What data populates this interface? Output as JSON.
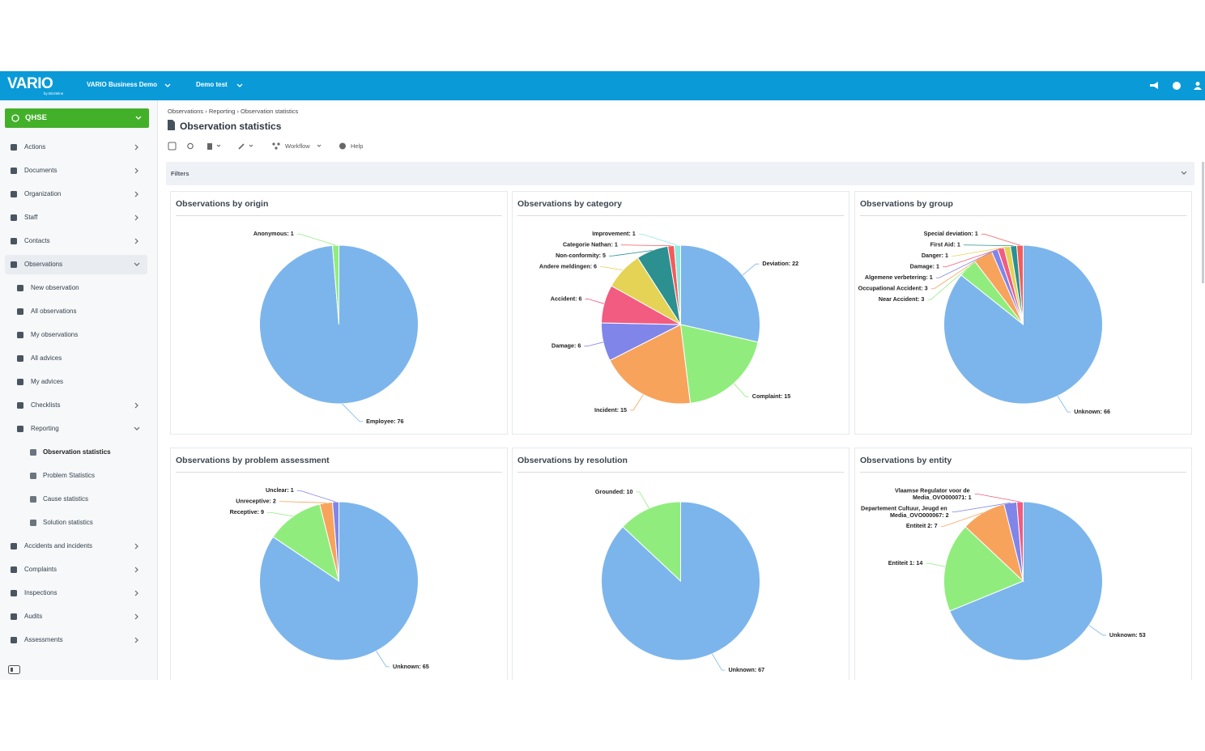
{
  "header": {
    "logo": "VARIO",
    "logo_sub": "by BizzMine",
    "workspace": "VARIO Business Demo",
    "environment": "Demo test"
  },
  "sidebar": {
    "module": "QHSE",
    "items": [
      {
        "label": "Actions",
        "level": 0,
        "chevron": "right"
      },
      {
        "label": "Documents",
        "level": 0,
        "chevron": "right"
      },
      {
        "label": "Organization",
        "level": 0,
        "chevron": "right"
      },
      {
        "label": "Staff",
        "level": 0,
        "chevron": "right"
      },
      {
        "label": "Contacts",
        "level": 0,
        "chevron": "right"
      },
      {
        "label": "Observations",
        "level": 0,
        "chevron": "down",
        "highlight": true
      },
      {
        "label": "New observation",
        "level": 1
      },
      {
        "label": "All observations",
        "level": 1
      },
      {
        "label": "My observations",
        "level": 1
      },
      {
        "label": "All advices",
        "level": 1
      },
      {
        "label": "My advices",
        "level": 1
      },
      {
        "label": "Checklists",
        "level": 1,
        "chevron": "right"
      },
      {
        "label": "Reporting",
        "level": 1,
        "chevron": "down"
      },
      {
        "label": "Observation statistics",
        "level": 2,
        "active": true
      },
      {
        "label": "Problem Statistics",
        "level": 2
      },
      {
        "label": "Cause statistics",
        "level": 2
      },
      {
        "label": "Solution statistics",
        "level": 2
      },
      {
        "label": "Accidents and incidents",
        "level": 0,
        "chevron": "right"
      },
      {
        "label": "Complaints",
        "level": 0,
        "chevron": "right"
      },
      {
        "label": "Inspections",
        "level": 0,
        "chevron": "right"
      },
      {
        "label": "Audits",
        "level": 0,
        "chevron": "right"
      },
      {
        "label": "Assessments",
        "level": 0,
        "chevron": "right"
      }
    ]
  },
  "breadcrumb": "Observations › Reporting › Observation statistics",
  "page_title": "Observation statistics",
  "toolbar": {
    "workflow": "Workflow",
    "help": "Help"
  },
  "filters": "Filters",
  "chart_data": [
    {
      "type": "pie",
      "title": "Observations by origin",
      "values": [
        76,
        1
      ],
      "value_labels": [
        "Employee: 76",
        "Anonymous: 1"
      ],
      "colors": [
        "#7cb5ec",
        "#90ed7d"
      ]
    },
    {
      "type": "pie",
      "title": "Observations by category",
      "values": [
        22,
        15,
        15,
        6,
        6,
        6,
        5,
        1,
        1
      ],
      "value_labels": [
        "Deviation: 22",
        "Complaint: 15",
        "Incident: 15",
        "Damage: 6",
        "Accident: 6",
        "Andere meldingen: 6",
        "Non-conformity: 5",
        "Categorie Nathan: 1",
        "Improvement: 1"
      ],
      "colors": [
        "#7cb5ec",
        "#90ed7d",
        "#f7a35c",
        "#8085e9",
        "#f15c80",
        "#e4d354",
        "#2b908f",
        "#f45b5b",
        "#91e8e1"
      ]
    },
    {
      "type": "pie",
      "title": "Observations by group",
      "values": [
        66,
        3,
        3,
        1,
        1,
        1,
        1,
        1
      ],
      "value_labels": [
        "Unknown: 66",
        "Near Accident: 3",
        "Occupational Accident: 3",
        "Algemene verbetering: 1",
        "Damage: 1",
        "Danger: 1",
        "First Aid: 1",
        "Special deviation: 1"
      ],
      "colors": [
        "#7cb5ec",
        "#90ed7d",
        "#f7a35c",
        "#8085e9",
        "#f15c80",
        "#e4d354",
        "#2b908f",
        "#f45b5b"
      ]
    },
    {
      "type": "pie",
      "title": "Observations by problem assessment",
      "values": [
        65,
        9,
        2,
        1
      ],
      "value_labels": [
        "Unknown: 65",
        "Receptive: 9",
        "Unreceptive: 2",
        "Unclear: 1"
      ],
      "colors": [
        "#7cb5ec",
        "#90ed7d",
        "#f7a35c",
        "#8085e9"
      ]
    },
    {
      "type": "pie",
      "title": "Observations by resolution",
      "values": [
        67,
        10
      ],
      "value_labels": [
        "Unknown: 67",
        "Grounded: 10"
      ],
      "colors": [
        "#7cb5ec",
        "#90ed7d"
      ]
    },
    {
      "type": "pie",
      "title": "Observations by entity",
      "values": [
        53,
        14,
        7,
        2,
        1
      ],
      "value_labels": [
        "Unknown: 53",
        "Entiteit 1: 14",
        "Entiteit 2: 7",
        "Departement Cultuur, Jeugd en Media_OVO000067: 2",
        "Vlaamse Regulator voor de Media_OVO000071: 1"
      ],
      "colors": [
        "#7cb5ec",
        "#90ed7d",
        "#f7a35c",
        "#8085e9",
        "#f15c80"
      ]
    }
  ]
}
